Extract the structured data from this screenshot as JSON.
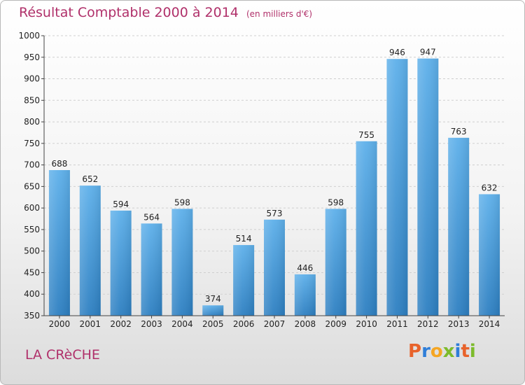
{
  "header": {
    "title": "Résultat Comptable 2000 à 2014",
    "unit": "(en milliers d'€)"
  },
  "footer": {
    "commune": "LA CRèCHE",
    "logo_letters": [
      "P",
      "r",
      "o",
      "x",
      "i",
      "t",
      "i"
    ]
  },
  "colors": {
    "title": "#b0306a",
    "bar_top": "#5eb0ea",
    "bar_bottom": "#2d7fc1",
    "logo": [
      "#e8632b",
      "#2f7ed8",
      "#f5a623",
      "#7dbb2b",
      "#2f7ed8",
      "#e8632b",
      "#7dbb2b"
    ]
  },
  "chart_data": {
    "type": "bar",
    "title": "Résultat Comptable 2000 à 2014",
    "subtitle": "(en milliers d'€)",
    "xlabel": "",
    "ylabel": "",
    "categories": [
      "2000",
      "2001",
      "2002",
      "2003",
      "2004",
      "2005",
      "2006",
      "2007",
      "2008",
      "2009",
      "2010",
      "2011",
      "2012",
      "2013",
      "2014"
    ],
    "values": [
      688,
      652,
      594,
      564,
      598,
      374,
      514,
      573,
      446,
      598,
      755,
      946,
      947,
      763,
      632
    ],
    "ylim": [
      350,
      1000
    ],
    "yticks": [
      350,
      400,
      450,
      500,
      550,
      600,
      650,
      700,
      750,
      800,
      850,
      900,
      950,
      1000
    ],
    "grid": true,
    "data_labels": true
  }
}
